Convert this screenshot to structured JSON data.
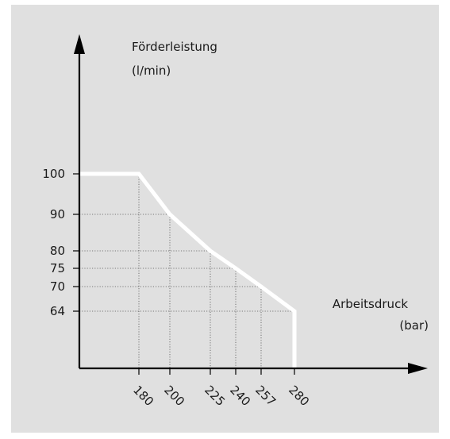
{
  "chart_data": {
    "type": "line",
    "title": "",
    "ylabel_line1": "Förderleistung",
    "ylabel_line2": "(l/min)",
    "xlabel_line1": "Arbeitsdruck",
    "xlabel_line2": "(bar)",
    "x_ticks": [
      "180",
      "200",
      "225",
      "240",
      "257",
      "280"
    ],
    "y_ticks": [
      "100",
      "90",
      "80",
      "75",
      "70",
      "64"
    ],
    "series": [
      {
        "points": [
          {
            "x": 140,
            "y": 100
          },
          {
            "x": 180,
            "y": 100
          },
          {
            "x": 200,
            "y": 90
          },
          {
            "x": 225,
            "y": 80
          },
          {
            "x": 240,
            "y": 75
          },
          {
            "x": 257,
            "y": 70
          },
          {
            "x": 280,
            "y": 64
          },
          {
            "x": 280,
            "y": 0
          }
        ]
      }
    ],
    "grid": "dotted guide lines to the curve",
    "colors": {
      "background": "#e0e0e0",
      "curve": "#ffffff",
      "axes": "#000000"
    }
  }
}
